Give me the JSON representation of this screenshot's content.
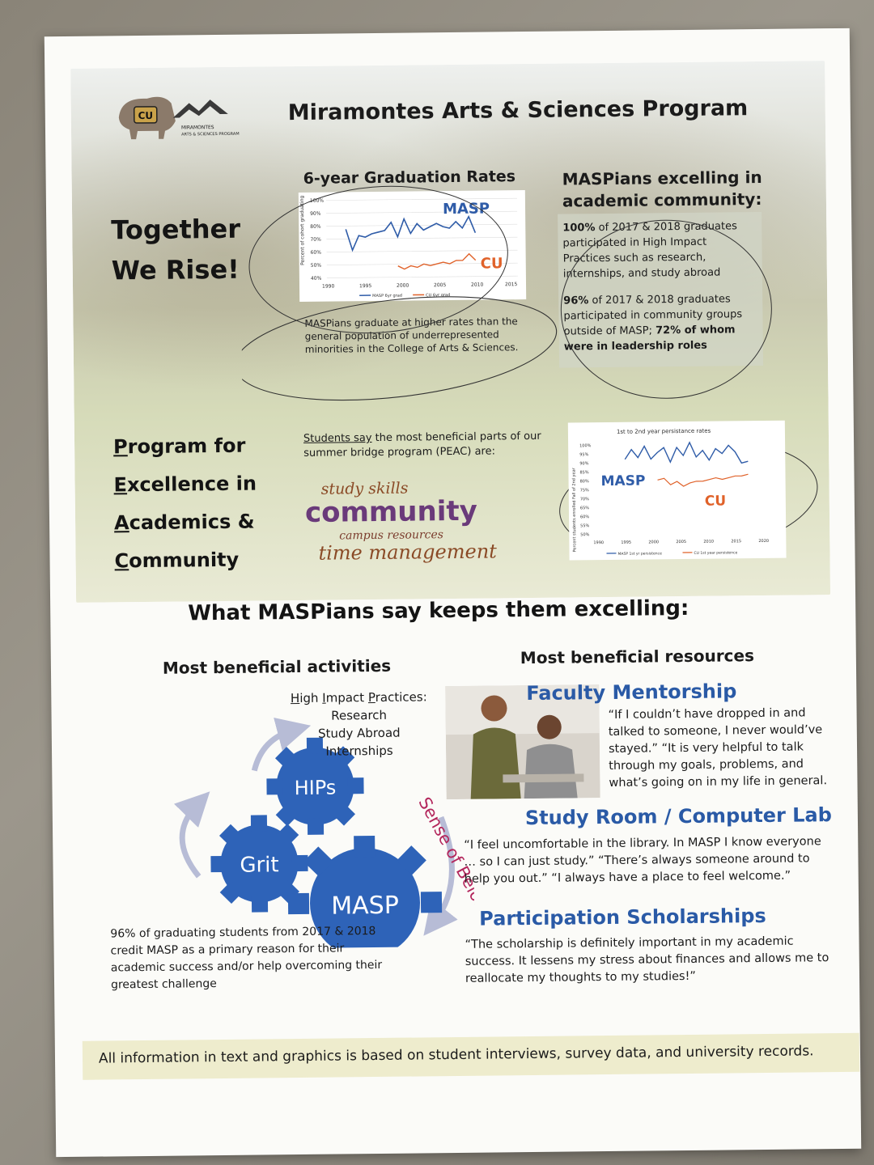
{
  "title": "Miramontes Arts & Sciences Program",
  "logo": {
    "line1": "MIRAMONTES",
    "line2": "ARTS & SCIENCES PROGRAM",
    "mark": "CU"
  },
  "together": [
    "Together",
    "We Rise!"
  ],
  "grad_chart": {
    "title": "6-year Graduation Rates",
    "ylabel": "Percent of cohort graduating",
    "yticks": [
      "100%",
      "90%",
      "80%",
      "70%",
      "60%",
      "50%",
      "40%"
    ],
    "xticks": [
      "1990",
      "1995",
      "2000",
      "2005",
      "2010",
      "2015"
    ],
    "legend": [
      "MASP 6yr grad",
      "CU 6yr grad"
    ],
    "label_masp": "MASP",
    "label_cu": "CU"
  },
  "grad_note": "MASPians graduate at higher rates than the general population of underrepresented minorities in the College of Arts & Sciences.",
  "excelling": {
    "heading": "MASPians excelling in academic community:",
    "p1_bold": "100%",
    "p1": " of 2017 & 2018 graduates participated in High Impact Practices such as research, internships, and study abroad",
    "p2_bold": "96%",
    "p2": " of 2017 & 2018 graduates participated in community groups outside of MASP; ",
    "p2_bold2": "72% of whom were in leadership roles"
  },
  "peac": {
    "lines": [
      {
        "cap": "P",
        "rest": "rogram for"
      },
      {
        "cap": "E",
        "rest": "xcellence in"
      },
      {
        "cap": "A",
        "rest": "cademics &"
      },
      {
        "cap": "C",
        "rest": "ommunity"
      }
    ],
    "students_u": "Students say",
    "students": " the most beneficial parts of our summer bridge program (PEAC) are:",
    "words": [
      "study skills",
      "community",
      "campus resources",
      "time management"
    ]
  },
  "persist_chart": {
    "title": "1st to 2nd year persistance rates",
    "ylabel": "Percent students enrolled Fall of 2nd year",
    "yticks": [
      "100%",
      "95%",
      "90%",
      "85%",
      "80%",
      "75%",
      "70%",
      "65%",
      "60%",
      "55%",
      "50%"
    ],
    "xticks": [
      "1990",
      "1995",
      "2000",
      "2005",
      "2010",
      "2015",
      "2020"
    ],
    "legend": [
      "MASP 1st yr persistence",
      "CU 1st year persistence"
    ],
    "label_masp": "MASP",
    "label_cu": "CU"
  },
  "section_heading": "What MASPians say keeps them excelling:",
  "activities": {
    "heading": "Most beneficial activities",
    "hips_title_u": "H",
    "hips_title": "igh ",
    "hips_title_u2": "I",
    "hips_title2": "mpact ",
    "hips_title_u3": "P",
    "hips_title3": "ractices:",
    "hips_items": [
      "Research",
      "Study Abroad",
      "Internships"
    ],
    "gear_hips": "HIPs",
    "gear_grit": "Grit",
    "gear_masp": "MASP",
    "belonging": "Sense of Belonging",
    "pct_text": "96% of graduating students from 2017 & 2018 credit MASP as a primary reason for their academic success and/or help overcoming their greatest challenge"
  },
  "resources": {
    "heading": "Most beneficial resources",
    "items": [
      {
        "title": "Faculty Mentorship",
        "quote": "“If I couldn’t have dropped in and talked to someone, I never would’ve stayed.” “It is very helpful to talk through my goals, problems, and what’s going on in my life in general."
      },
      {
        "title": "Study Room / Computer Lab",
        "quote": "“I feel uncomfortable in the library. In MASP I know everyone … so I can just study.”  “There’s always someone around to help you out.” “I always have a place to feel welcome.”"
      },
      {
        "title": "Participation Scholarships",
        "quote": "“The scholarship is definitely important in my academic success. It lessens my stress about finances and allows me to reallocate my thoughts to my studies!”"
      }
    ]
  },
  "footer": "All information in text and graphics is based on student interviews, survey data, and university records.",
  "colors": {
    "masp": "#2f5ca8",
    "cu": "#e0622a",
    "gear": "#2e63b8",
    "belonging": "#b3265c"
  }
}
